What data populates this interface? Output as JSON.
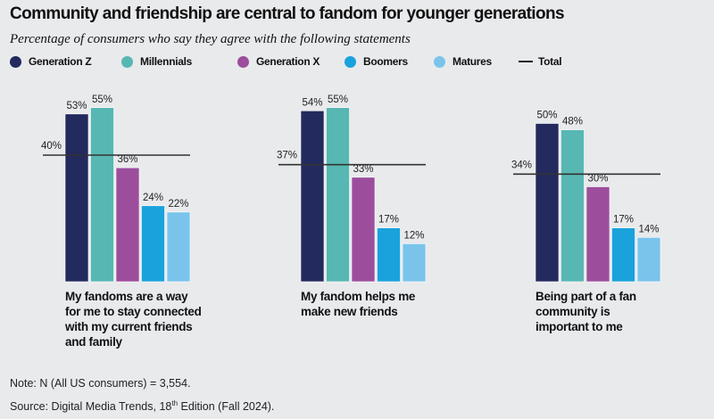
{
  "title": "Community and friendship are central to fandom for younger generations",
  "subtitle": "Percentage of consumers who say they agree with the following statements",
  "note": "Note: N (All US consumers) = 3,554.",
  "source": {
    "prefix": "Source: Digital Media Trends, 18",
    "sup": "th",
    "suffix": " Edition (Fall 2024)."
  },
  "chart_data": {
    "type": "bar",
    "title": "Community and friendship are central to fandom for younger generations",
    "subtitle": "Percentage of consumers who say they agree with the following statements",
    "categories": [
      "My fandoms are a way for me to stay connected with my current friends and family",
      "My fandom helps me make new friends",
      "Being part of a fan community is important to me"
    ],
    "series": [
      {
        "name": "Generation Z",
        "color": "#232a5e",
        "values": [
          53,
          54,
          50
        ]
      },
      {
        "name": "Millennials",
        "color": "#57b7b3",
        "values": [
          55,
          55,
          48
        ]
      },
      {
        "name": "Generation X",
        "color": "#9c4e9c",
        "values": [
          36,
          33,
          30
        ]
      },
      {
        "name": "Boomers",
        "color": "#1aa2dc",
        "values": [
          24,
          17,
          17
        ]
      },
      {
        "name": "Matures",
        "color": "#7ac4ec",
        "values": [
          22,
          12,
          14
        ]
      }
    ],
    "total": {
      "name": "Total",
      "color": "#333333",
      "values": [
        40,
        37,
        34
      ]
    },
    "value_suffix": "%",
    "legend": "top-left",
    "grid": false
  }
}
